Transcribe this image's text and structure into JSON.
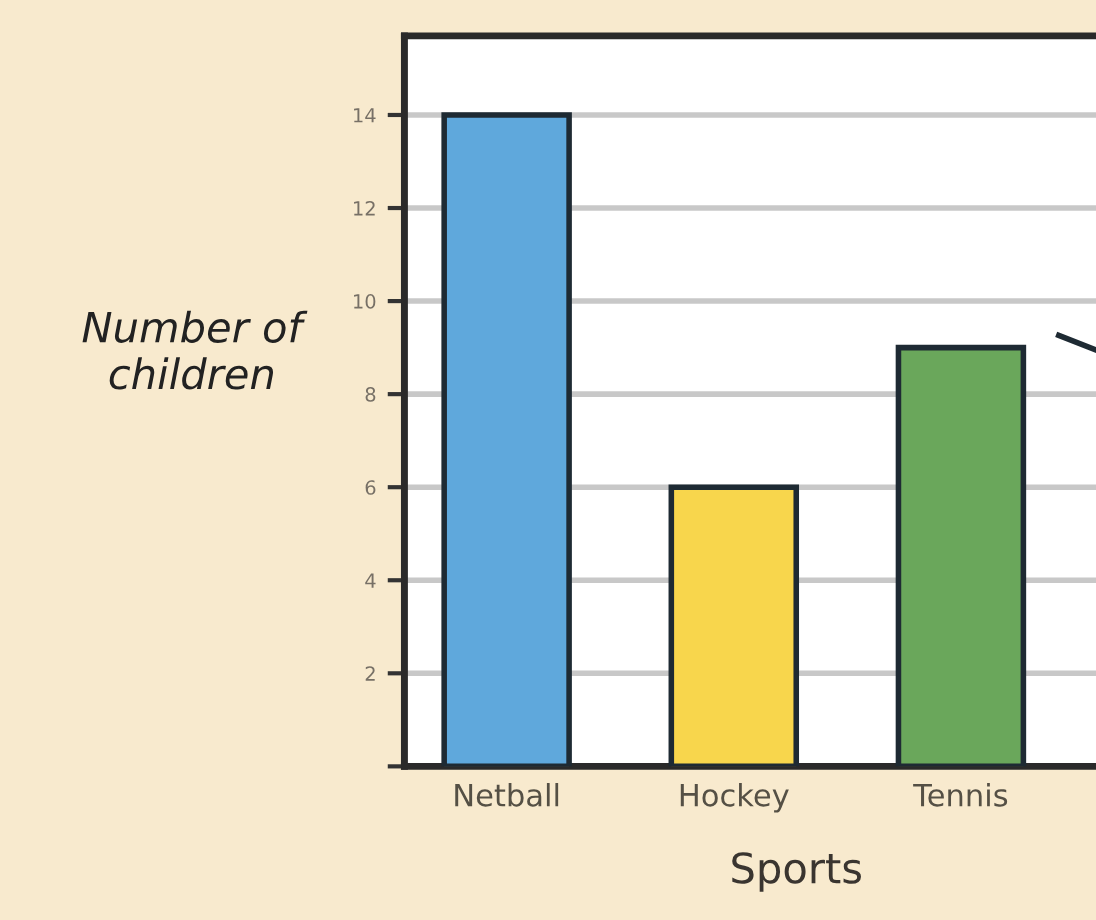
{
  "chart_data": {
    "type": "bar",
    "xlabel": "Sports",
    "ylabel": "Number of\nchildren",
    "categories": [
      "Netball",
      "Hockey",
      "Tennis"
    ],
    "values": [
      14,
      6,
      9
    ],
    "colors": [
      "#5fa8dc",
      "#f8d64c",
      "#6aa75b"
    ],
    "ylim": [
      0,
      15.7
    ],
    "yticks": [
      {
        "value": 0,
        "label": null
      },
      2,
      4,
      6,
      8,
      10,
      12,
      14
    ],
    "grid": "y"
  }
}
